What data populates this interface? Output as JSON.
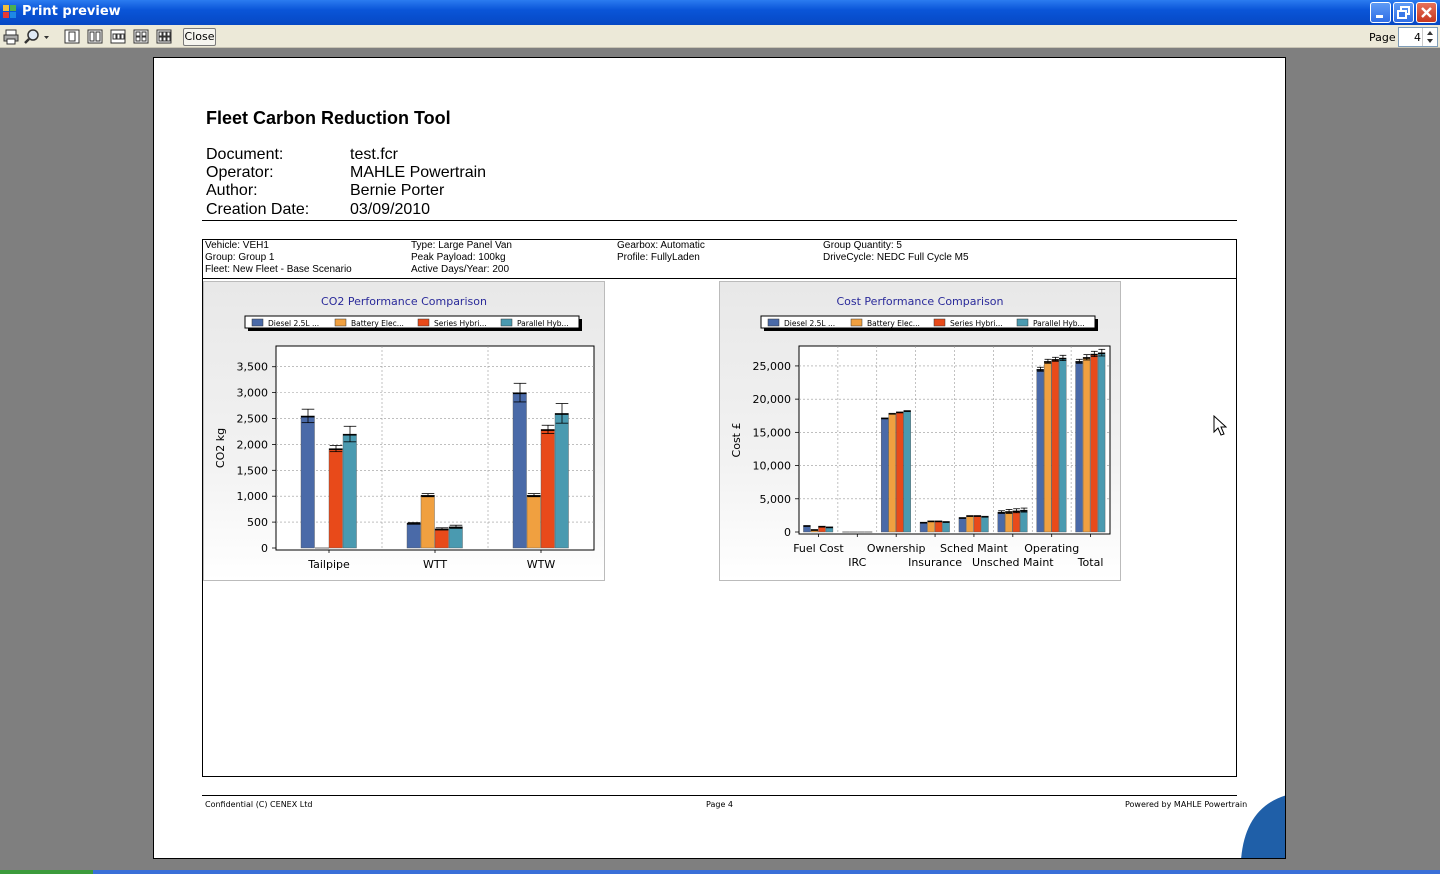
{
  "window": {
    "title": "Print preview"
  },
  "toolbar": {
    "close_label": "Close",
    "page_label": "Page",
    "page_value": "4"
  },
  "report": {
    "title": "Fleet Carbon Reduction Tool",
    "meta": [
      {
        "label": "Document:",
        "value": "test.fcr"
      },
      {
        "label": "Operator:",
        "value": "MAHLE Powertrain"
      },
      {
        "label": "Author:",
        "value": "Bernie Porter"
      },
      {
        "label": "Creation Date:",
        "value": "03/09/2010"
      }
    ],
    "vehicle_info": [
      [
        "Vehicle: VEH1",
        "Group: Group 1",
        "Fleet: New Fleet - Base Scenario"
      ],
      [
        "Type: Large Panel Van",
        "Peak Payload: 100kg",
        "Active Days/Year: 200"
      ],
      [
        "Gearbox: Automatic",
        "Profile: FullyLaden"
      ],
      [
        "Group Quantity: 5",
        "DriveCycle: NEDC Full Cycle M5"
      ]
    ],
    "footer": {
      "left": "Confidential (C) CENEX Ltd",
      "center": "Page 4",
      "right": "Powered by  MAHLE Powertrain"
    }
  },
  "colors": {
    "diesel": "#4a6aa8",
    "battery": "#f0a040",
    "series": "#e84a1a",
    "parallel": "#4a9ab0"
  },
  "chart_data": [
    {
      "type": "bar",
      "title": "CO2 Performance Comparison",
      "ylabel": "CO2 kg",
      "xlabel": "",
      "ylim": [
        0,
        3900
      ],
      "yticks": [
        "0",
        "500",
        "1,000",
        "1,500",
        "2,000",
        "2,500",
        "3,000",
        "3,500"
      ],
      "yticks_num": [
        0,
        500,
        1000,
        1500,
        2000,
        2500,
        3000,
        3500
      ],
      "grid": true,
      "legend": "top",
      "categories": [
        "Tailpipe",
        "WTT",
        "WTW"
      ],
      "series": [
        {
          "name": "Diesel 2.5L ...",
          "values": [
            2550,
            480,
            3000
          ],
          "errors": [
            130,
            10,
            180
          ]
        },
        {
          "name": "Battery Elec...",
          "values": [
            0,
            1020,
            1020
          ],
          "errors": [
            0,
            30,
            30
          ]
        },
        {
          "name": "Series Hybri...",
          "values": [
            1920,
            370,
            2290
          ],
          "errors": [
            60,
            20,
            80
          ]
        },
        {
          "name": "Parallel Hyb...",
          "values": [
            2200,
            410,
            2600
          ],
          "errors": [
            150,
            30,
            190
          ]
        }
      ]
    },
    {
      "type": "bar",
      "title": "Cost Performance Comparison",
      "ylabel": "Cost £",
      "xlabel": "",
      "ylim": [
        0,
        28000
      ],
      "yticks": [
        "0",
        "5,000",
        "10,000",
        "15,000",
        "20,000",
        "25,000"
      ],
      "yticks_num": [
        0,
        5000,
        10000,
        15000,
        20000,
        25000
      ],
      "grid": true,
      "legend": "top",
      "categories": [
        "Fuel Cost",
        "IRC",
        "Ownership",
        "Insurance",
        "Sched Maint",
        "Unsched Maint",
        "Operating",
        "Total"
      ],
      "series": [
        {
          "name": "Diesel 2.5L ...",
          "values": [
            1000,
            0,
            17200,
            1500,
            2200,
            3000,
            24500,
            25700
          ],
          "errors": [
            0,
            0,
            0,
            0,
            0,
            200,
            300,
            300
          ]
        },
        {
          "name": "Battery Elec...",
          "values": [
            400,
            0,
            17900,
            1700,
            2500,
            3100,
            25700,
            26300
          ],
          "errors": [
            0,
            0,
            0,
            0,
            0,
            300,
            300,
            400
          ]
        },
        {
          "name": "Series Hybri...",
          "values": [
            900,
            0,
            18100,
            1700,
            2500,
            3200,
            26000,
            26800
          ],
          "errors": [
            0,
            0,
            0,
            0,
            0,
            300,
            300,
            400
          ]
        },
        {
          "name": "Parallel Hyb...",
          "values": [
            800,
            0,
            18300,
            1600,
            2400,
            3300,
            26200,
            27000
          ],
          "errors": [
            0,
            0,
            0,
            0,
            0,
            300,
            400,
            500
          ]
        }
      ]
    }
  ]
}
